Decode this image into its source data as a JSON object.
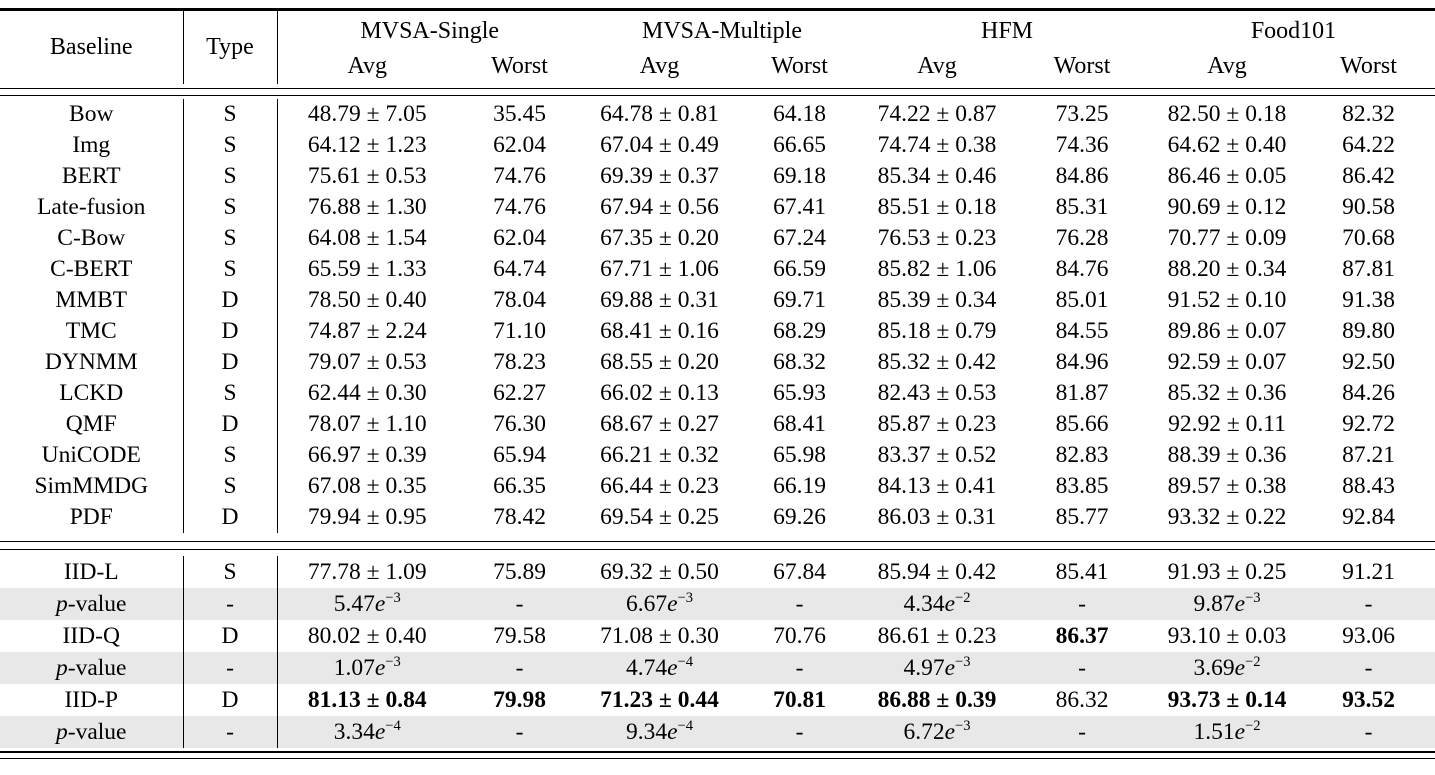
{
  "page": {
    "stripe_color": "#e8e8e8",
    "text_color": "#000000",
    "background_color": "#ffffff"
  },
  "header": {
    "baseline_label": "Baseline",
    "type_label": "Type",
    "groups": [
      {
        "name": "MVSA-Single",
        "sub": [
          "Avg",
          "Worst"
        ]
      },
      {
        "name": "MVSA-Multiple",
        "sub": [
          "Avg",
          "Worst"
        ]
      },
      {
        "name": "HFM",
        "sub": [
          "Avg",
          "Worst"
        ]
      },
      {
        "name": "Food101",
        "sub": [
          "Avg",
          "Worst"
        ]
      }
    ]
  },
  "baseline_rows": [
    {
      "baseline": "Bow",
      "type": "S",
      "cells": [
        "48.79 ± 7.05",
        "35.45",
        "64.78 ± 0.81",
        "64.18",
        "74.22 ± 0.87",
        "73.25",
        "82.50 ± 0.18",
        "82.32"
      ]
    },
    {
      "baseline": "Img",
      "type": "S",
      "cells": [
        "64.12 ± 1.23",
        "62.04",
        "67.04 ± 0.49",
        "66.65",
        "74.74 ± 0.38",
        "74.36",
        "64.62 ± 0.40",
        "64.22"
      ]
    },
    {
      "baseline": "BERT",
      "type": "S",
      "cells": [
        "75.61 ± 0.53",
        "74.76",
        "69.39 ± 0.37",
        "69.18",
        "85.34 ± 0.46",
        "84.86",
        "86.46 ± 0.05",
        "86.42"
      ]
    },
    {
      "baseline": "Late-fusion",
      "type": "S",
      "cells": [
        "76.88 ± 1.30",
        "74.76",
        "67.94 ± 0.56",
        "67.41",
        "85.51 ± 0.18",
        "85.31",
        "90.69 ± 0.12",
        "90.58"
      ]
    },
    {
      "baseline": "C-Bow",
      "type": "S",
      "cells": [
        "64.08 ± 1.54",
        "62.04",
        "67.35 ± 0.20",
        "67.24",
        "76.53 ± 0.23",
        "76.28",
        "70.77 ± 0.09",
        "70.68"
      ]
    },
    {
      "baseline": "C-BERT",
      "type": "S",
      "cells": [
        "65.59 ± 1.33",
        "64.74",
        "67.71 ± 1.06",
        "66.59",
        "85.82 ± 1.06",
        "84.76",
        "88.20 ± 0.34",
        "87.81"
      ]
    },
    {
      "baseline": "MMBT",
      "type": "D",
      "cells": [
        "78.50 ± 0.40",
        "78.04",
        "69.88 ± 0.31",
        "69.71",
        "85.39 ± 0.34",
        "85.01",
        "91.52 ± 0.10",
        "91.38"
      ]
    },
    {
      "baseline": "TMC",
      "type": "D",
      "cells": [
        "74.87 ± 2.24",
        "71.10",
        "68.41 ± 0.16",
        "68.29",
        "85.18 ± 0.79",
        "84.55",
        "89.86 ± 0.07",
        "89.80"
      ]
    },
    {
      "baseline": "DYNMM",
      "type": "D",
      "cells": [
        "79.07 ± 0.53",
        "78.23",
        "68.55 ± 0.20",
        "68.32",
        "85.32 ± 0.42",
        "84.96",
        "92.59 ± 0.07",
        "92.50"
      ]
    },
    {
      "baseline": "LCKD",
      "type": "S",
      "cells": [
        "62.44 ± 0.30",
        "62.27",
        "66.02 ± 0.13",
        "65.93",
        "82.43 ± 0.53",
        "81.87",
        "85.32 ± 0.36",
        "84.26"
      ]
    },
    {
      "baseline": "QMF",
      "type": "D",
      "cells": [
        "78.07 ± 1.10",
        "76.30",
        "68.67 ± 0.27",
        "68.41",
        "85.87 ± 0.23",
        "85.66",
        "92.92 ± 0.11",
        "92.72"
      ]
    },
    {
      "baseline": "UniCODE",
      "type": "S",
      "cells": [
        "66.97 ± 0.39",
        "65.94",
        "66.21 ± 0.32",
        "65.98",
        "83.37 ± 0.52",
        "82.83",
        "88.39 ± 0.36",
        "87.21"
      ]
    },
    {
      "baseline": "SimMMDG",
      "type": "S",
      "cells": [
        "67.08 ± 0.35",
        "66.35",
        "66.44 ± 0.23",
        "66.19",
        "84.13 ± 0.41",
        "83.85",
        "89.57 ± 0.38",
        "88.43"
      ]
    },
    {
      "baseline": "PDF",
      "type": "D",
      "cells": [
        "79.94 ± 0.95",
        "78.42",
        "69.54 ± 0.25",
        "69.26",
        "86.03 ± 0.31",
        "85.77",
        "93.32 ± 0.22",
        "92.84"
      ]
    }
  ],
  "method_rows": [
    {
      "baseline": "IID-L",
      "type": "S",
      "pvalue": false,
      "bold": [],
      "cells": [
        "77.78 ± 1.09",
        "75.89",
        "69.32 ± 0.50",
        "67.84",
        "85.94 ± 0.42",
        "85.41",
        "91.93 ± 0.25",
        "91.21"
      ]
    },
    {
      "baseline": "p-value",
      "type": "-",
      "pvalue": true,
      "bold": [],
      "cells": [
        "5.47e-3",
        "-",
        "6.67e-3",
        "-",
        "4.34e-2",
        "-",
        "9.87e-3",
        "-"
      ]
    },
    {
      "baseline": "IID-Q",
      "type": "D",
      "pvalue": false,
      "bold": [
        5
      ],
      "cells": [
        "80.02 ± 0.40",
        "79.58",
        "71.08 ± 0.30",
        "70.76",
        "86.61 ± 0.23",
        "86.37",
        "93.10 ± 0.03",
        "93.06"
      ]
    },
    {
      "baseline": "p-value",
      "type": "-",
      "pvalue": true,
      "bold": [],
      "cells": [
        "1.07e-3",
        "-",
        "4.74e-4",
        "-",
        "4.97e-3",
        "-",
        "3.69e-2",
        "-"
      ]
    },
    {
      "baseline": "IID-P",
      "type": "D",
      "pvalue": false,
      "bold": [
        0,
        1,
        2,
        3,
        4,
        6,
        7
      ],
      "cells": [
        "81.13 ± 0.84",
        "79.98",
        "71.23 ± 0.44",
        "70.81",
        "86.88 ± 0.39",
        "86.32",
        "93.73 ± 0.14",
        "93.52"
      ]
    },
    {
      "baseline": "p-value",
      "type": "-",
      "pvalue": true,
      "bold": [],
      "cells": [
        "3.34e-4",
        "-",
        "9.34e-4",
        "-",
        "6.72e-3",
        "-",
        "1.51e-2",
        "-"
      ]
    }
  ]
}
